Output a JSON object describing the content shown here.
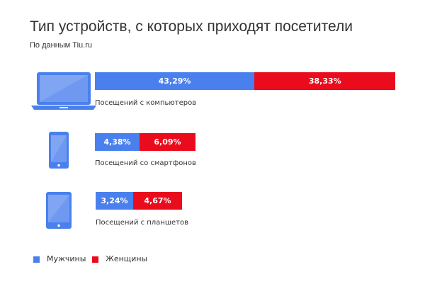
{
  "chart_data": {
    "type": "bar",
    "stacked": true,
    "orientation": "horizontal",
    "title": "Тип устройств, с которых приходят посетители",
    "subtitle": "По данным Tiu.ru",
    "categories": [
      "Посещений с компьютеров",
      "Посещений со смартфонов",
      "Посещений с планшетов"
    ],
    "category_icons": [
      "laptop-icon",
      "smartphone-icon",
      "tablet-icon"
    ],
    "series": [
      {
        "name": "Мужчины",
        "color": "#4a80ed",
        "values": [
          43.29,
          4.38,
          3.24
        ],
        "labels": [
          "43,29%",
          "4,38%",
          "3,24%"
        ]
      },
      {
        "name": "Женщины",
        "color": "#ea0c1d",
        "values": [
          38.33,
          6.09,
          4.67
        ],
        "labels": [
          "38,33%",
          "6,09%",
          "4,67%"
        ]
      }
    ],
    "legend_position": "bottom-left",
    "grid": false
  }
}
